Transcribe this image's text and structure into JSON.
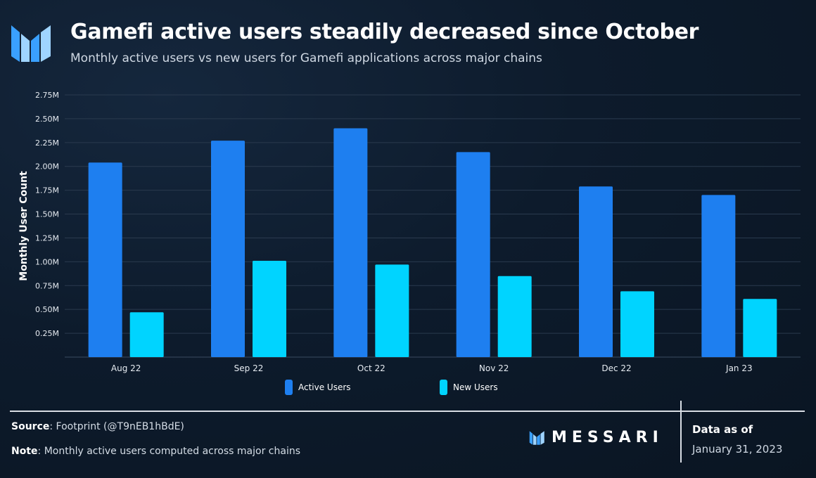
{
  "header": {
    "title": "Gamefi active users steadily decreased since October",
    "subtitle": "Monthly active users vs new users for Gamefi applications across major chains"
  },
  "colors": {
    "active": "#1e7ff0",
    "new": "#00d4ff",
    "grid": "#2a3a4e",
    "axis_text": "#e6ebf1"
  },
  "chart_data": {
    "type": "bar",
    "title": "Gamefi active users steadily decreased since October",
    "ylabel": "Monthly User Count",
    "xlabel": "",
    "categories": [
      "Aug 22",
      "Sep 22",
      "Oct 22",
      "Nov 22",
      "Dec 22",
      "Jan 23"
    ],
    "series": [
      {
        "name": "Active Users",
        "values": [
          2.04,
          2.27,
          2.4,
          2.15,
          1.79,
          1.7
        ]
      },
      {
        "name": "New Users",
        "values": [
          0.47,
          1.01,
          0.97,
          0.85,
          0.69,
          0.61
        ]
      }
    ],
    "ylim": [
      0,
      2.75
    ],
    "yticks": [
      "0.25M",
      "0.50M",
      "0.75M",
      "1.00M",
      "1.25M",
      "1.50M",
      "1.75M",
      "2.00M",
      "2.25M",
      "2.50M",
      "2.75M"
    ],
    "unit": "millions",
    "grid": true,
    "legend_position": "bottom-center"
  },
  "legend": {
    "active_label": "Active Users",
    "new_label": "New Users"
  },
  "footer": {
    "source_label": "Source",
    "source_text": ": Footprint (@T9nEB1hBdE)",
    "note_label": "Note",
    "note_text": ": Monthly active users computed across major chains",
    "brand": "MESSARI",
    "as_of_label": "Data as of",
    "as_of_date": "January 31, 2023"
  }
}
